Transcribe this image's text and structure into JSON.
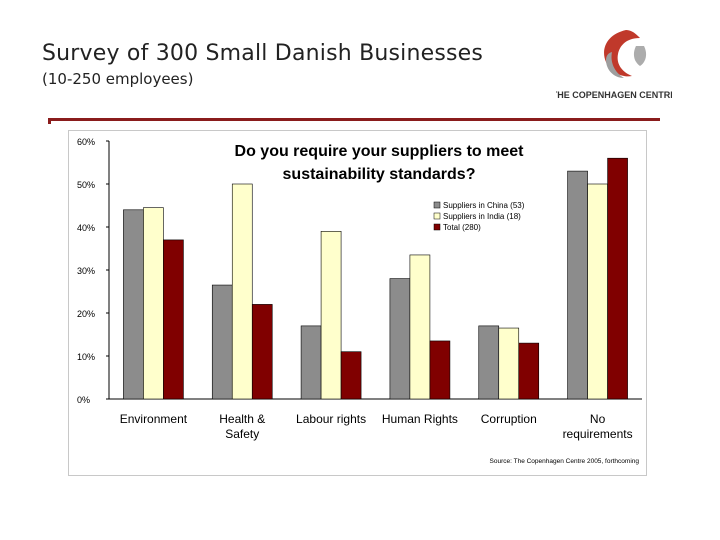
{
  "slide": {
    "title": "Survey of 300 Small Danish Businesses",
    "subtitle": "(10-250 employees)"
  },
  "logo": {
    "text": "THE COPENHAGEN CENTRE",
    "colors": {
      "red": "#c0392b",
      "grey": "#9e9e9e",
      "text": "#333333"
    }
  },
  "chart_data": {
    "type": "bar",
    "title_lines": [
      "Do you require your suppliers to meet",
      "sustainability standards?"
    ],
    "categories": [
      [
        "Environment"
      ],
      [
        "Health &",
        "Safety"
      ],
      [
        "Labour rights"
      ],
      [
        "Human Rights"
      ],
      [
        "Corruption"
      ],
      [
        "No",
        "requirements"
      ]
    ],
    "series": [
      {
        "name": "Suppliers in China (53)",
        "color": "#8c8c8c",
        "values": [
          44,
          26.5,
          17,
          28,
          17,
          53
        ]
      },
      {
        "name": "Suppliers in India (18)",
        "color": "#ffffcc",
        "values": [
          44.5,
          50,
          39,
          33.5,
          16.5,
          50
        ]
      },
      {
        "name": "Total (280)",
        "color": "#800000",
        "values": [
          37,
          22,
          11,
          13.5,
          13,
          56
        ]
      }
    ],
    "ylim": [
      0,
      60
    ],
    "yticks": [
      "0%",
      "10%",
      "20%",
      "30%",
      "40%",
      "50%",
      "60%"
    ],
    "ytick_values": [
      0,
      10,
      20,
      30,
      40,
      50,
      60
    ],
    "source": "Source: The Copenhagen Centre 2005, forthcoming",
    "legend_position": "top-right",
    "grid": false
  }
}
